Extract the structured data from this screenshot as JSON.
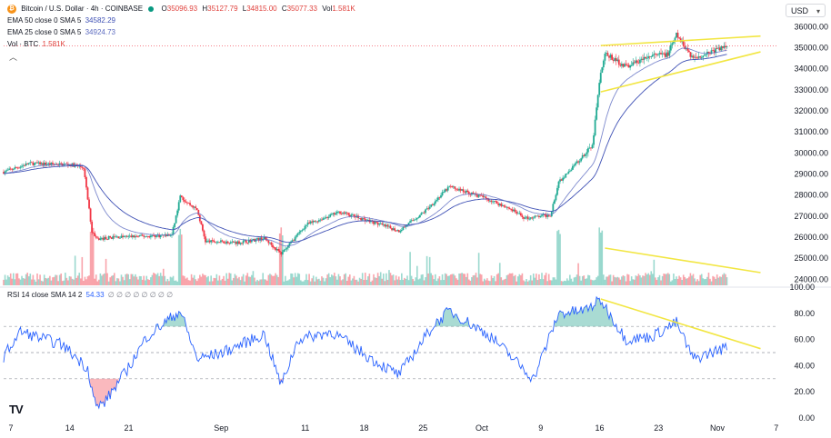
{
  "header": {
    "symbol_title": "Bitcoin / U.S. Dollar · 4h · COINBASE",
    "ohlc": [
      {
        "key": "O",
        "value": "35096.93"
      },
      {
        "key": "H",
        "value": "35127.79"
      },
      {
        "key": "L",
        "value": "34815.00"
      },
      {
        "key": "C",
        "value": "35077.33"
      }
    ],
    "vol_label": "Vol",
    "vol_value": "1.581K",
    "ema50_label": "EMA 50 close 0 SMA 5",
    "ema50_value": "34582.29",
    "ema25_label": "EMA 25 close 0 SMA 5",
    "ema25_value": "34924.73",
    "volbtc_label": "Vol · BTC",
    "volbtc_value": "1.581K",
    "rsi_label": "RSI 14 close SMA 14 2",
    "rsi_value": "54.33",
    "rsi_extra": "∅ ∅ ∅ ∅ ∅ ∅ ∅ ∅",
    "collapse_icon": "chevron-up-icon"
  },
  "currency_select": {
    "value": "USD",
    "icon": "chevron-down-icon"
  },
  "logo": {
    "text": "TV"
  },
  "colors": {
    "up": "#22ab94",
    "down": "#f23645",
    "ema50": "#3f51b5",
    "ema25": "#5c6bc0",
    "rsi_line": "#2962ff",
    "trendline": "#f2e642",
    "oversold_fill": "#f23645",
    "overbought_fill": "#089981",
    "grid": "#f0f3fa",
    "axis_text": "#131722"
  },
  "chart_data": [
    {
      "type": "candlestick",
      "title": "Bitcoin / U.S. Dollar · 4h · COINBASE",
      "ylim": [
        23800,
        36400
      ],
      "y_ticks": [
        24000,
        25000,
        26000,
        27000,
        28000,
        29000,
        30000,
        31000,
        32000,
        33000,
        34000,
        35000,
        36000
      ],
      "y_tick_labels": [
        "24000.00",
        "25000.00",
        "26000.00",
        "27000.00",
        "28000.00",
        "29000.00",
        "30000.00",
        "31000.00",
        "32000.00",
        "33000.00",
        "34000.00",
        "35000.00",
        "36000.00"
      ],
      "x_tick_labels": [
        "7",
        "14",
        "21",
        "Sep",
        "11",
        "18",
        "25",
        "Oct",
        "9",
        "16",
        "23",
        "Nov",
        "7"
      ],
      "x_tick_positions": [
        0,
        7,
        14,
        25,
        35,
        42,
        49,
        56,
        63,
        70,
        77,
        84,
        91
      ],
      "x_unit": "days since Aug 7",
      "price_anchors": [
        {
          "day": 0,
          "close": 29100
        },
        {
          "day": 3,
          "close": 29500
        },
        {
          "day": 8,
          "close": 29450
        },
        {
          "day": 9.5,
          "close": 29300
        },
        {
          "day": 10.5,
          "close": 26300
        },
        {
          "day": 11,
          "close": 25900
        },
        {
          "day": 13,
          "close": 26000
        },
        {
          "day": 17,
          "close": 26050
        },
        {
          "day": 20,
          "close": 26100
        },
        {
          "day": 21,
          "close": 27900
        },
        {
          "day": 23,
          "close": 27300
        },
        {
          "day": 24,
          "close": 25800
        },
        {
          "day": 28,
          "close": 25750
        },
        {
          "day": 31,
          "close": 25950
        },
        {
          "day": 33,
          "close": 25200
        },
        {
          "day": 36,
          "close": 26600
        },
        {
          "day": 40,
          "close": 27200
        },
        {
          "day": 44,
          "close": 26700
        },
        {
          "day": 47,
          "close": 26300
        },
        {
          "day": 50,
          "close": 27200
        },
        {
          "day": 53,
          "close": 28400
        },
        {
          "day": 57,
          "close": 27900
        },
        {
          "day": 60,
          "close": 27400
        },
        {
          "day": 62,
          "close": 26900
        },
        {
          "day": 65,
          "close": 27050
        },
        {
          "day": 66,
          "close": 28600
        },
        {
          "day": 69,
          "close": 29900
        },
        {
          "day": 70,
          "close": 30300
        },
        {
          "day": 71,
          "close": 33900
        },
        {
          "day": 71.5,
          "close": 34700
        },
        {
          "day": 74,
          "close": 34100
        },
        {
          "day": 77,
          "close": 34600
        },
        {
          "day": 79,
          "close": 34700
        },
        {
          "day": 80,
          "close": 35600
        },
        {
          "day": 82,
          "close": 34500
        },
        {
          "day": 86,
          "close": 35077
        }
      ],
      "series": [
        {
          "name": "EMA 50 close 0 SMA 5",
          "last": 34582.29
        },
        {
          "name": "EMA 25 close 0 SMA 5",
          "last": 34924.73
        }
      ],
      "volume_last": "1.581K",
      "trendlines": [
        {
          "pane": "price",
          "from": [
            71,
            35100
          ],
          "to": [
            90,
            35550
          ]
        },
        {
          "pane": "price",
          "from": [
            71,
            32900
          ],
          "to": [
            90,
            34800
          ]
        },
        {
          "pane": "volume",
          "note": "descending line over volume bars"
        }
      ],
      "grid": false
    },
    {
      "type": "line",
      "title": "RSI 14 close SMA 14 2",
      "ylim": [
        0,
        100
      ],
      "y_ticks": [
        0,
        20,
        40,
        60,
        80,
        100
      ],
      "y_tick_labels": [
        "0.00",
        "20.00",
        "40.00",
        "60.00",
        "80.00",
        "100.00"
      ],
      "bands": [
        30,
        50,
        70
      ],
      "last_value": 54.33,
      "anchors": [
        {
          "day": 0,
          "value": 47
        },
        {
          "day": 2,
          "value": 66
        },
        {
          "day": 7,
          "value": 56
        },
        {
          "day": 10,
          "value": 38
        },
        {
          "day": 11,
          "value": 8
        },
        {
          "day": 12,
          "value": 12
        },
        {
          "day": 15,
          "value": 40
        },
        {
          "day": 17,
          "value": 62
        },
        {
          "day": 21,
          "value": 82
        },
        {
          "day": 23,
          "value": 45
        },
        {
          "day": 26,
          "value": 50
        },
        {
          "day": 31,
          "value": 64
        },
        {
          "day": 33,
          "value": 25
        },
        {
          "day": 35,
          "value": 60
        },
        {
          "day": 39,
          "value": 66
        },
        {
          "day": 44,
          "value": 44
        },
        {
          "day": 47,
          "value": 33
        },
        {
          "day": 51,
          "value": 70
        },
        {
          "day": 53,
          "value": 82
        },
        {
          "day": 58,
          "value": 62
        },
        {
          "day": 63,
          "value": 30
        },
        {
          "day": 66,
          "value": 80
        },
        {
          "day": 69,
          "value": 82
        },
        {
          "day": 71,
          "value": 90
        },
        {
          "day": 74,
          "value": 60
        },
        {
          "day": 77,
          "value": 62
        },
        {
          "day": 80,
          "value": 73
        },
        {
          "day": 82,
          "value": 45
        },
        {
          "day": 86,
          "value": 54.33
        }
      ],
      "trendline": {
        "from": [
          71,
          91
        ],
        "to": [
          90,
          53
        ]
      },
      "oversold_fill_below": 30,
      "overbought_fill_above": 70
    }
  ]
}
